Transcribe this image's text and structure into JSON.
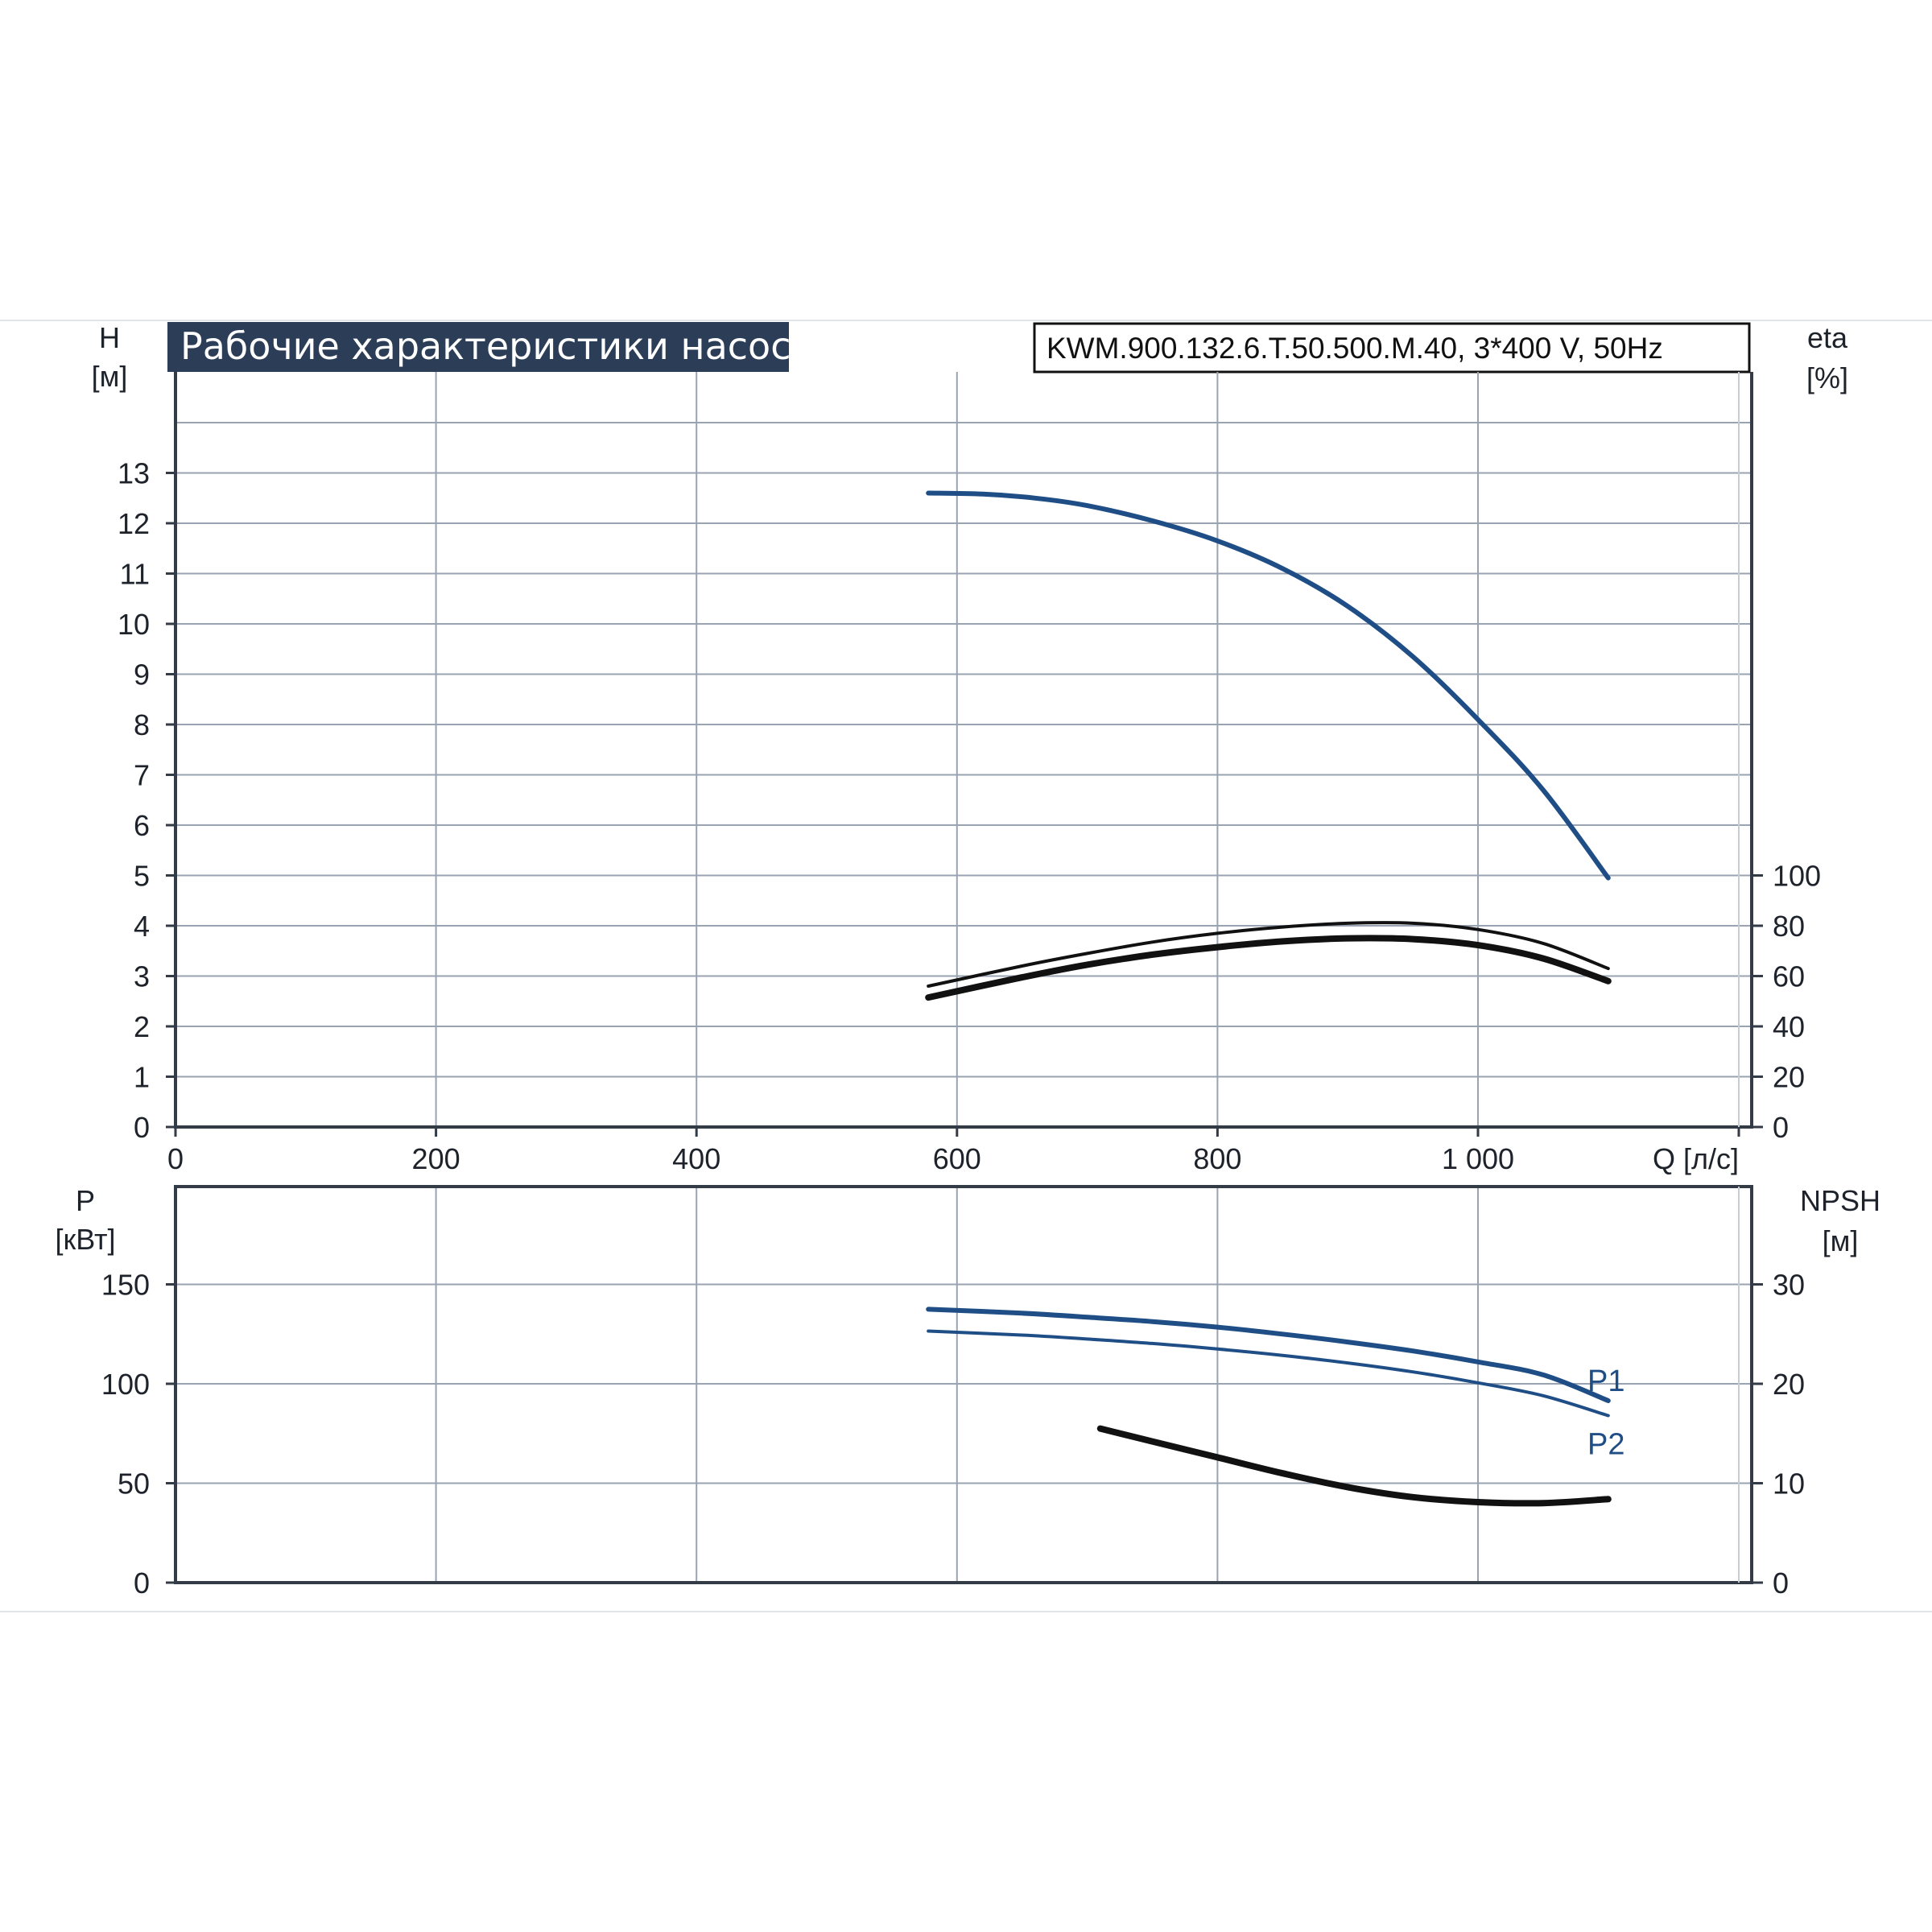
{
  "title": "Рабочие характеристики насоса",
  "model": "KWM.900.132.6.T.50.500.M.40, 3*400 V, 50Hz",
  "colors": {
    "blue": "#1f4e86",
    "black": "#111111",
    "title_bg": "#2c3e57"
  },
  "chart_data": [
    {
      "type": "line",
      "name": "head-efficiency",
      "x_axis": {
        "unit": "Q [л/с]",
        "range": [
          0,
          1200
        ],
        "ticks": [
          {
            "v": 0,
            "label": "0"
          },
          {
            "v": 200,
            "label": "200"
          },
          {
            "v": 400,
            "label": "400"
          },
          {
            "v": 600,
            "label": "600"
          },
          {
            "v": 800,
            "label": "800"
          },
          {
            "v": 1000,
            "label": "1 000"
          }
        ]
      },
      "y_left": {
        "name": "H",
        "unit": "[м]",
        "range": [
          0,
          13
        ],
        "ticks": [
          {
            "v": 0,
            "label": "0"
          },
          {
            "v": 1,
            "label": "1"
          },
          {
            "v": 2,
            "label": "2"
          },
          {
            "v": 3,
            "label": "3"
          },
          {
            "v": 4,
            "label": "4"
          },
          {
            "v": 5,
            "label": "5"
          },
          {
            "v": 6,
            "label": "6"
          },
          {
            "v": 7,
            "label": "7"
          },
          {
            "v": 8,
            "label": "8"
          },
          {
            "v": 9,
            "label": "9"
          },
          {
            "v": 10,
            "label": "10"
          },
          {
            "v": 11,
            "label": "11"
          },
          {
            "v": 12,
            "label": "12"
          },
          {
            "v": 13,
            "label": "13"
          }
        ]
      },
      "y_right": {
        "name": "eta",
        "unit": "[%]",
        "range": [
          0,
          100
        ],
        "ticks": [
          {
            "v": 0,
            "label": "0"
          },
          {
            "v": 20,
            "label": "20"
          },
          {
            "v": 40,
            "label": "40"
          },
          {
            "v": 60,
            "label": "60"
          },
          {
            "v": 80,
            "label": "80"
          },
          {
            "v": 100,
            "label": "100"
          }
        ]
      },
      "grid": true,
      "series": [
        {
          "label": "",
          "axis": "left",
          "color": "#1f4e86",
          "stroke_weight": "medium",
          "x": [
            578,
            620,
            660,
            700,
            750,
            800,
            850,
            900,
            950,
            1000,
            1050,
            1100
          ],
          "y": [
            12.6,
            12.58,
            12.5,
            12.35,
            12.05,
            11.65,
            11.1,
            10.35,
            9.35,
            8.1,
            6.7,
            4.95
          ]
        },
        {
          "label": "",
          "axis": "right",
          "color": "#111111",
          "stroke_weight": "thin",
          "x": [
            578,
            650,
            700,
            750,
            800,
            850,
            900,
            950,
            1000,
            1050,
            1100
          ],
          "y": [
            56,
            64,
            69,
            73.5,
            77,
            79.5,
            81,
            81,
            78.5,
            73,
            63
          ]
        },
        {
          "label": "",
          "axis": "right",
          "color": "#111111",
          "stroke_weight": "thick",
          "x": [
            578,
            650,
            700,
            750,
            800,
            850,
            900,
            950,
            1000,
            1050,
            1100
          ],
          "y": [
            51.5,
            59.5,
            64.5,
            68.5,
            71.5,
            73.8,
            75,
            74.7,
            72.3,
            67,
            58
          ]
        }
      ]
    },
    {
      "type": "line",
      "name": "power-npsh",
      "x_axis": {
        "unit": "Q [л/с]",
        "range": [
          0,
          1200
        ]
      },
      "y_left": {
        "name": "P",
        "unit": "[кВт]",
        "range": [
          0,
          200
        ],
        "ticks": [
          {
            "v": 0,
            "label": "0"
          },
          {
            "v": 50,
            "label": "50"
          },
          {
            "v": 100,
            "label": "100"
          },
          {
            "v": 150,
            "label": "150"
          }
        ]
      },
      "y_right": {
        "name": "NPSH",
        "unit": "[м]",
        "range": [
          0,
          40
        ],
        "ticks": [
          {
            "v": 0,
            "label": "0"
          },
          {
            "v": 10,
            "label": "10"
          },
          {
            "v": 20,
            "label": "20"
          },
          {
            "v": 30,
            "label": "30"
          }
        ]
      },
      "grid": true,
      "series": [
        {
          "label": "P1",
          "axis": "left",
          "color": "#1f4e86",
          "stroke_weight": "medium",
          "x": [
            578,
            650,
            700,
            750,
            800,
            850,
            900,
            950,
            1000,
            1050,
            1100
          ],
          "y": [
            137.5,
            135.5,
            133.5,
            131.3,
            128.5,
            125,
            121,
            116.5,
            111,
            104.5,
            91.5
          ]
        },
        {
          "label": "P2",
          "axis": "left",
          "color": "#1f4e86",
          "stroke_weight": "thin",
          "x": [
            578,
            650,
            700,
            750,
            800,
            850,
            900,
            950,
            1000,
            1050,
            1100
          ],
          "y": [
            126.5,
            124.5,
            122.5,
            120.3,
            117.5,
            114.3,
            110.5,
            106,
            100.5,
            94,
            84
          ]
        },
        {
          "label": "",
          "axis": "right",
          "color": "#111111",
          "stroke_weight": "thick",
          "x": [
            710,
            750,
            800,
            850,
            900,
            950,
            1000,
            1050,
            1100
          ],
          "y": [
            15.5,
            14.2,
            12.6,
            11.0,
            9.6,
            8.6,
            8.1,
            8.0,
            8.4
          ]
        }
      ]
    }
  ]
}
